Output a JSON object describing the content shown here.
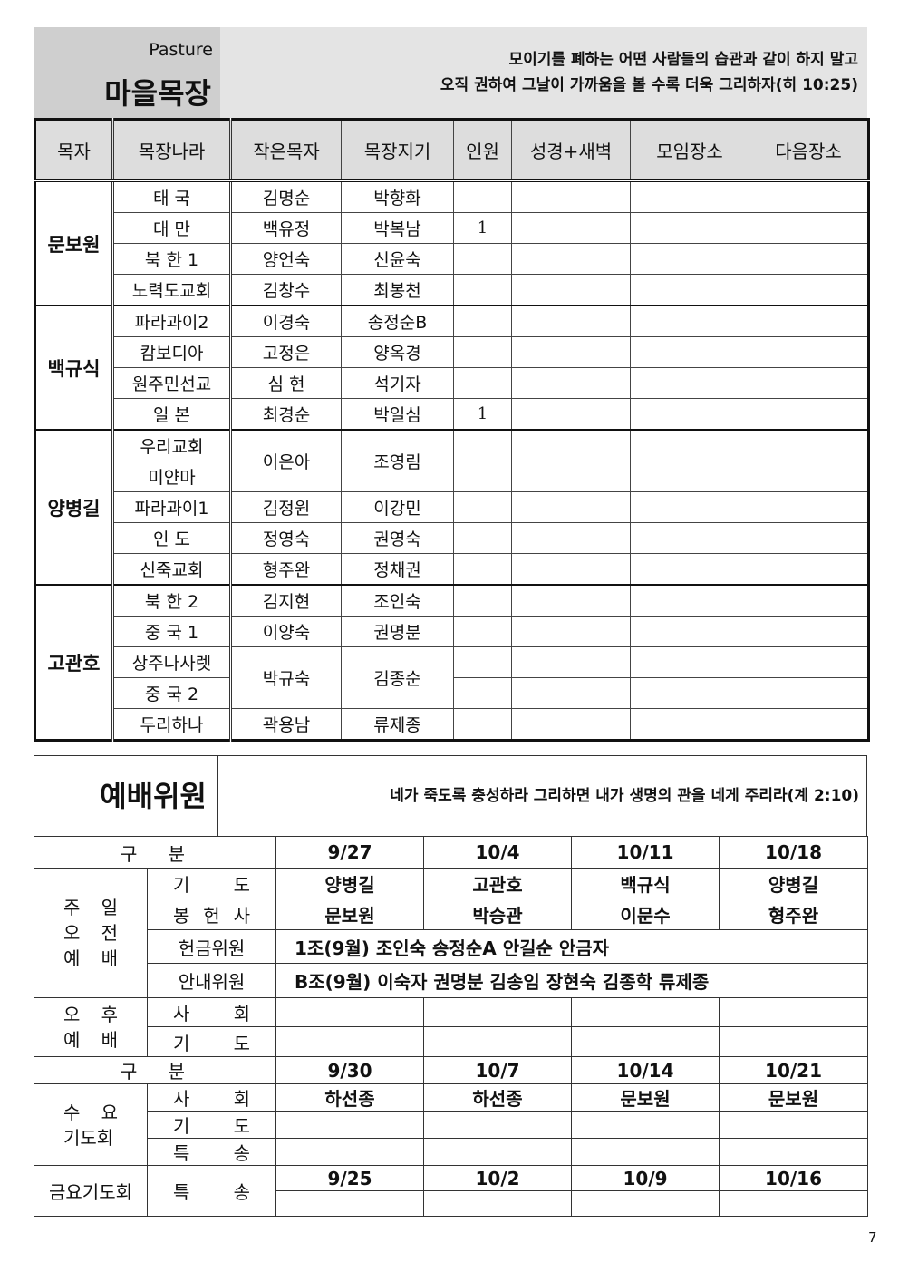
{
  "header": {
    "subtitle": "Pasture",
    "title": "마을목장",
    "verse_lines": [
      "모이기를 폐하는 어떤 사람들의 습관과 같이 하지 말고",
      "오직 권하여 그날이 가까움을 볼 수록 더욱 그리하자(히 10:25)"
    ]
  },
  "pasture_table": {
    "headers": [
      "목자",
      "목장나라",
      "작은목자",
      "목장지기",
      "인원",
      "성경+새벽",
      "모임장소",
      "다음장소"
    ],
    "groups": [
      {
        "leader": "문보원",
        "teams": [
          {
            "small_shepherd": "김명순",
            "keeper": "박향화",
            "nations": [
              {
                "name": "태 국"
              }
            ]
          },
          {
            "small_shepherd": "백유정",
            "keeper": "박복남",
            "nations": [
              {
                "name": "대 만",
                "count": 1
              }
            ]
          },
          {
            "small_shepherd": "양언숙",
            "keeper": "신윤숙",
            "nations": [
              {
                "name": "북 한 1"
              }
            ]
          },
          {
            "small_shepherd": "김창수",
            "keeper": "최봉천",
            "nations": [
              {
                "name": "노력도교회"
              }
            ]
          }
        ]
      },
      {
        "leader": "백규식",
        "teams": [
          {
            "small_shepherd": "이경숙",
            "keeper": "송정순B",
            "nations": [
              {
                "name": "파라과이2"
              }
            ]
          },
          {
            "small_shepherd": "고정은",
            "keeper": "양옥경",
            "nations": [
              {
                "name": "캄보디아"
              }
            ]
          },
          {
            "small_shepherd": "심 현",
            "keeper": "석기자",
            "nations": [
              {
                "name": "원주민선교"
              }
            ]
          },
          {
            "small_shepherd": "최경순",
            "keeper": "박일심",
            "nations": [
              {
                "name": "일 본",
                "count": 1
              }
            ]
          }
        ]
      },
      {
        "leader": "양병길",
        "teams": [
          {
            "small_shepherd": "이은아",
            "keeper": "조영림",
            "nations": [
              {
                "name": "우리교회"
              },
              {
                "name": "미얀마"
              }
            ]
          },
          {
            "small_shepherd": "김정원",
            "keeper": "이강민",
            "nations": [
              {
                "name": "파라과이1"
              }
            ]
          },
          {
            "small_shepherd": "정영숙",
            "keeper": "권영숙",
            "nations": [
              {
                "name": "인 도"
              }
            ]
          },
          {
            "small_shepherd": "형주완",
            "keeper": "정채권",
            "nations": [
              {
                "name": "신죽교회"
              }
            ]
          }
        ]
      },
      {
        "leader": "고관호",
        "teams": [
          {
            "small_shepherd": "김지현",
            "keeper": "조인숙",
            "nations": [
              {
                "name": "북 한 2"
              }
            ]
          },
          {
            "small_shepherd": "이양숙",
            "keeper": "권명분",
            "nations": [
              {
                "name": "중 국 1"
              }
            ]
          },
          {
            "small_shepherd": "박규숙",
            "keeper": "김종순",
            "nations": [
              {
                "name": "상주나사렛"
              },
              {
                "name": "중 국 2"
              }
            ]
          },
          {
            "small_shepherd": "곽용남",
            "keeper": "류제종",
            "nations": [
              {
                "name": "두리하나"
              }
            ]
          }
        ]
      }
    ]
  },
  "worship": {
    "title": "예배위원",
    "verse": "네가 죽도록 충성하라 그리하면 내가 생명의 관을 네게 주리라(계 2:10)",
    "sunday_header": {
      "label": "구 분",
      "dates": [
        "9/27",
        "10/4",
        "10/11",
        "10/18"
      ]
    },
    "sunday_morning": {
      "label_lines": [
        "주 일",
        "오 전",
        "예 배"
      ],
      "rows": [
        {
          "label": "기 도",
          "values": [
            "양병길",
            "고관호",
            "백규식",
            "양병길"
          ]
        },
        {
          "label": "봉 헌 사",
          "values": [
            "문보원",
            "박승관",
            "이문수",
            "형주완"
          ]
        },
        {
          "label": "헌금위원",
          "text": "1조(9월) 조인숙 송정순A 안길순 안금자"
        },
        {
          "label": "안내위원",
          "text": "B조(9월) 이숙자 권명분 김송임 장현숙 김종학 류제종"
        }
      ]
    },
    "sunday_afternoon": {
      "label_lines": [
        "오 후",
        "예 배"
      ],
      "rows": [
        {
          "label": "사 회"
        },
        {
          "label": "기 도"
        }
      ]
    },
    "wednesday_header": {
      "label": "구 분",
      "dates": [
        "9/30",
        "10/7",
        "10/14",
        "10/21"
      ]
    },
    "wednesday": {
      "label_lines": [
        "수 요",
        "기도회"
      ],
      "rows": [
        {
          "label": "사 회",
          "values": [
            "하선종",
            "하선종",
            "문보원",
            "문보원"
          ]
        },
        {
          "label": "기 도"
        },
        {
          "label": "특 송"
        }
      ]
    },
    "friday": {
      "label": "금요기도회",
      "row_label": "특 송",
      "dates": [
        "9/25",
        "10/2",
        "10/9",
        "10/16"
      ]
    }
  },
  "page_number": "7"
}
